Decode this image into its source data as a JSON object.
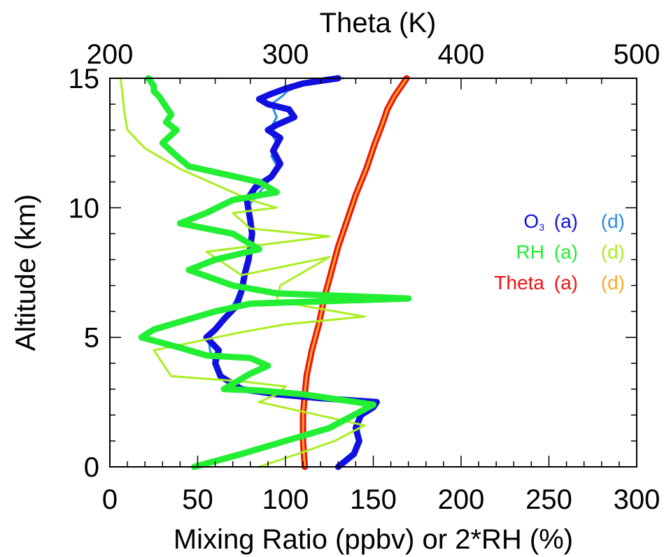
{
  "chart_data": {
    "type": "line",
    "title": "",
    "xlabel": "Mixing Ratio (ppbv) or 2*RH (%)",
    "ylabel": "Altitude (km)",
    "x2label": "Theta (K)",
    "xlim": [
      0,
      300
    ],
    "x2lim": [
      200,
      500
    ],
    "ylim": [
      0,
      15
    ],
    "xticks": [
      "0",
      "50",
      "100",
      "150",
      "200",
      "250",
      "300"
    ],
    "x2ticks": [
      "200",
      "300",
      "400",
      "500"
    ],
    "yticks": [
      "0",
      "5",
      "10",
      "15"
    ],
    "legend": {
      "placement": "right-middle",
      "rows": [
        {
          "label": "O",
          "subscript": "3",
          "a": "(a)",
          "d": "(d)",
          "color_a": "#1010e0",
          "color_d": "#2a8cf0"
        },
        {
          "label": "RH",
          "subscript": "",
          "a": "(a)",
          "d": "(d)",
          "color_a": "#22ee33",
          "color_d": "#aaee22"
        },
        {
          "label": "Theta",
          "subscript": "",
          "a": "(a)",
          "d": "(d)",
          "color_a": "#ee1111",
          "color_d": "#ffaa22"
        }
      ]
    },
    "series": [
      {
        "key": "theta_a",
        "axis": "top",
        "color": "#ee1111",
        "width": 9,
        "x": [
          311,
          310,
          310,
          311,
          312,
          315,
          319,
          322,
          326,
          330,
          335,
          340,
          346,
          351,
          355,
          358,
          362,
          366,
          369
        ],
        "y": [
          0,
          1,
          2,
          2.8,
          3.5,
          4.5,
          5.5,
          6.5,
          7.5,
          8.5,
          9.5,
          10.5,
          11.5,
          12.5,
          13.2,
          13.8,
          14.3,
          14.7,
          15
        ]
      },
      {
        "key": "theta_d",
        "axis": "top",
        "color": "#ffaa22",
        "width": 3,
        "x": [
          311,
          310,
          310,
          311,
          312,
          315,
          319,
          322,
          326,
          330,
          335,
          340,
          346,
          351,
          355,
          358,
          362,
          366,
          369
        ],
        "y": [
          0,
          1,
          2,
          2.8,
          3.5,
          4.5,
          5.5,
          6.5,
          7.5,
          8.5,
          9.5,
          10.5,
          11.5,
          12.5,
          13.2,
          13.8,
          14.3,
          14.7,
          15
        ]
      },
      {
        "key": "o3_d",
        "axis": "bottom",
        "color": "#2a8cf0",
        "width": 3,
        "x": [
          138,
          141,
          142,
          141,
          143,
          150,
          148,
          120,
          92,
          78,
          62,
          57,
          56,
          60,
          63,
          68,
          72,
          75,
          77,
          78,
          79,
          80,
          79,
          78,
          84,
          90,
          96,
          92,
          95,
          91,
          95,
          92,
          98,
          101,
          108,
          112,
          120,
          128,
          133
        ],
        "y": [
          0.5,
          1,
          1.5,
          1.8,
          2.1,
          2.4,
          2.6,
          2.7,
          2.8,
          3.0,
          3.5,
          4.5,
          5.0,
          5.3,
          5.6,
          6.0,
          6.5,
          7.0,
          7.5,
          8.0,
          8.5,
          9.0,
          9.5,
          10.0,
          10.5,
          11.0,
          11.5,
          12.0,
          12.5,
          13.0,
          13.5,
          14.0,
          14.3,
          14.5,
          14.7,
          14.8,
          14.9,
          15.0,
          15.0
        ]
      },
      {
        "key": "o3_a",
        "axis": "bottom",
        "color": "#1010e0",
        "width": 9,
        "x": [
          130,
          139,
          142,
          140,
          143,
          150,
          152,
          120,
          95,
          75,
          63,
          60,
          62,
          55,
          60,
          65,
          72,
          75,
          77,
          79,
          80,
          81,
          80,
          78,
          83,
          92,
          97,
          93,
          97,
          90,
          95,
          105,
          102,
          90,
          85,
          92,
          100,
          110,
          120,
          130
        ],
        "y": [
          0,
          0.5,
          1.0,
          1.5,
          2.0,
          2.3,
          2.5,
          2.65,
          2.8,
          3.0,
          3.5,
          4.0,
          4.5,
          5.0,
          5.3,
          5.7,
          6.2,
          6.8,
          7.5,
          8.0,
          8.5,
          9.0,
          9.5,
          10.3,
          10.8,
          11.2,
          11.7,
          12.2,
          12.7,
          13.0,
          13.2,
          13.5,
          13.8,
          14.0,
          14.2,
          14.4,
          14.6,
          14.8,
          14.9,
          15.0
        ]
      },
      {
        "key": "rh_d",
        "axis": "bottom",
        "color": "#aaee22",
        "width": 3,
        "x": [
          85,
          107,
          128,
          145,
          112,
          85,
          95,
          100,
          75,
          35,
          25,
          75,
          100,
          145,
          95,
          97,
          125,
          75,
          55,
          125,
          80,
          70,
          95,
          80,
          40,
          20,
          10,
          8,
          7,
          6
        ],
        "y": [
          0,
          0.5,
          1.0,
          1.6,
          2.1,
          2.5,
          2.8,
          3.1,
          3.3,
          3.5,
          4.5,
          5.2,
          5.5,
          5.8,
          6.4,
          7.0,
          8.1,
          7.4,
          8.3,
          8.9,
          9.2,
          9.8,
          10.0,
          10.3,
          11.5,
          12.3,
          13.0,
          13.8,
          14.5,
          15.0
        ]
      },
      {
        "key": "rh_a",
        "axis": "bottom",
        "color": "#22ee33",
        "width": 9,
        "x": [
          48,
          75,
          100,
          125,
          150,
          110,
          85,
          65,
          80,
          90,
          80,
          55,
          40,
          18,
          25,
          60,
          80,
          170,
          95,
          70,
          45,
          60,
          85,
          70,
          40,
          55,
          70,
          95,
          85,
          45,
          38,
          30,
          38,
          32,
          35,
          32,
          30,
          28,
          25,
          25,
          22
        ],
        "y": [
          0,
          0.5,
          1.0,
          1.5,
          2.4,
          2.8,
          2.95,
          3.0,
          3.6,
          3.9,
          4.2,
          4.3,
          4.6,
          5.0,
          5.3,
          6.0,
          6.3,
          6.5,
          6.7,
          7.0,
          7.6,
          8.0,
          8.4,
          9.0,
          9.4,
          9.8,
          10.3,
          10.6,
          11.0,
          11.6,
          12.0,
          12.5,
          13.0,
          13.3,
          13.6,
          13.9,
          14.1,
          14.3,
          14.5,
          14.7,
          15.0
        ]
      }
    ]
  }
}
